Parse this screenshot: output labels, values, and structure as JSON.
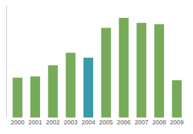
{
  "chart_data": {
    "type": "bar",
    "categories": [
      "2000",
      "2001",
      "2002",
      "2003",
      "2004",
      "2005",
      "2006",
      "2007",
      "2008",
      "2009"
    ],
    "values": [
      32,
      33,
      42,
      52,
      48,
      72,
      80,
      76,
      75,
      30
    ],
    "colors": [
      "#77ab59",
      "#77ab59",
      "#77ab59",
      "#77ab59",
      "#3a9aaa",
      "#77ab59",
      "#77ab59",
      "#77ab59",
      "#77ab59",
      "#77ab59"
    ],
    "ylim": [
      0,
      90
    ],
    "yticks": [],
    "grid": false,
    "tick_labels": "x"
  }
}
